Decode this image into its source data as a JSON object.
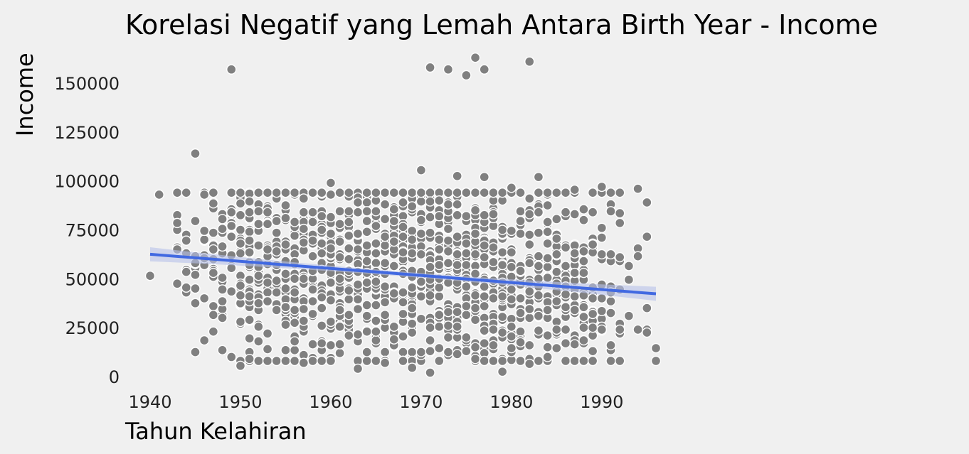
{
  "chart_data": {
    "type": "scatter",
    "title": "Korelasi Negatif yang Lemah Antara Birth Year - Income",
    "xlabel": "Tahun Kelahiran",
    "ylabel": "Income",
    "xlim": [
      1938.3,
      1996.8
    ],
    "ylim": [
      -2000,
      168000
    ],
    "x_ticks": [
      1940,
      1950,
      1960,
      1970,
      1980,
      1990
    ],
    "x_tick_labels": [
      "1940",
      "1950",
      "1960",
      "1970",
      "1980",
      "1990"
    ],
    "y_ticks": [
      0,
      25000,
      50000,
      75000,
      100000,
      125000,
      150000
    ],
    "y_tick_labels": [
      "0",
      "25000",
      "50000",
      "75000",
      "100000",
      "125000",
      "150000"
    ],
    "grid": false,
    "colors": {
      "points": "#808080",
      "point_edge": "#ffffff",
      "trend": "#4169e1",
      "band": "#b8c2ea",
      "background": "#f0f0f0"
    },
    "trend_line": {
      "x": [
        1940,
        1996
      ],
      "y": [
        62500,
        42300
      ]
    },
    "highlighted_points": [
      {
        "x": 1940,
        "y": 51500
      },
      {
        "x": 1941,
        "y": 93000
      },
      {
        "x": 1945,
        "y": 114000
      },
      {
        "x": 1946,
        "y": 18500
      },
      {
        "x": 1949,
        "y": 157000
      },
      {
        "x": 1950,
        "y": 5500
      },
      {
        "x": 1957,
        "y": 7000
      },
      {
        "x": 1960,
        "y": 99000
      },
      {
        "x": 1963,
        "y": 4000
      },
      {
        "x": 1966,
        "y": 7000
      },
      {
        "x": 1969,
        "y": 4500
      },
      {
        "x": 1970,
        "y": 105500
      },
      {
        "x": 1971,
        "y": 158000
      },
      {
        "x": 1971,
        "y": 2000
      },
      {
        "x": 1973,
        "y": 157000
      },
      {
        "x": 1974,
        "y": 102500
      },
      {
        "x": 1975,
        "y": 154000
      },
      {
        "x": 1976,
        "y": 163000
      },
      {
        "x": 1977,
        "y": 157000
      },
      {
        "x": 1977,
        "y": 102000
      },
      {
        "x": 1979,
        "y": 2500
      },
      {
        "x": 1980,
        "y": 96500
      },
      {
        "x": 1982,
        "y": 161000
      },
      {
        "x": 1982,
        "y": 6500
      },
      {
        "x": 1983,
        "y": 102000
      },
      {
        "x": 1987,
        "y": 95500
      },
      {
        "x": 1990,
        "y": 97000
      },
      {
        "x": 1994,
        "y": 96000
      },
      {
        "x": 1995,
        "y": 35000
      },
      {
        "x": 1995,
        "y": 71500
      },
      {
        "x": 1996,
        "y": 14500
      },
      {
        "x": 1996,
        "y": 8000
      }
    ],
    "cloud_note_points_per_year": "dense cluster roughly 5000-95000 for each year 1943-1996"
  }
}
